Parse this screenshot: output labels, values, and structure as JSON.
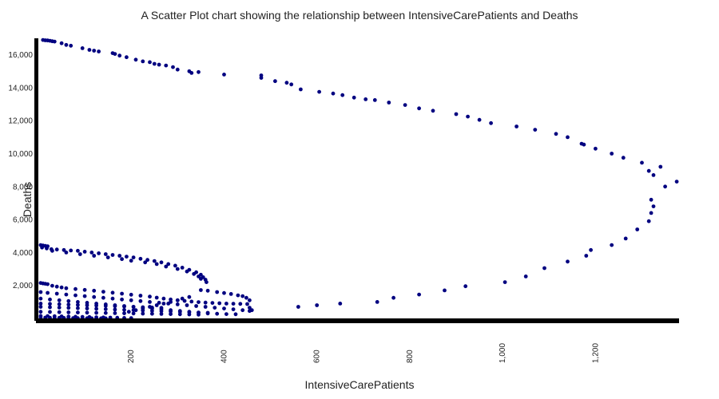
{
  "chart_data": {
    "type": "scatter",
    "title": "A Scatter Plot chart showing the relationship between IntensiveCarePatients and Deaths",
    "xlabel": "IntensiveCarePatients",
    "ylabel": "Deaths",
    "xlim": [
      0,
      1380
    ],
    "ylim": [
      0,
      17000
    ],
    "grid": false,
    "legend": "none",
    "x_ticks": [
      200,
      400,
      600,
      800,
      1000,
      1200
    ],
    "x_tick_labels": [
      "200",
      "400",
      "600",
      "800",
      "1,000",
      "1,200"
    ],
    "y_ticks": [
      2000,
      4000,
      6000,
      8000,
      10000,
      12000,
      14000,
      16000
    ],
    "y_tick_labels": [
      "2,000",
      "4,000",
      "6,000",
      "8,000",
      "10,000",
      "12,000",
      "14,000",
      "16,000"
    ],
    "marker_color": "#000080",
    "points": [
      [
        10,
        16900
      ],
      [
        15,
        16880
      ],
      [
        20,
        16870
      ],
      [
        25,
        16850
      ],
      [
        30,
        16820
      ],
      [
        35,
        16800
      ],
      [
        50,
        16700
      ],
      [
        60,
        16600
      ],
      [
        70,
        16550
      ],
      [
        95,
        16400
      ],
      [
        110,
        16300
      ],
      [
        120,
        16250
      ],
      [
        130,
        16200
      ],
      [
        160,
        16100
      ],
      [
        165,
        16050
      ],
      [
        175,
        15950
      ],
      [
        190,
        15850
      ],
      [
        210,
        15700
      ],
      [
        225,
        15600
      ],
      [
        240,
        15550
      ],
      [
        250,
        15450
      ],
      [
        260,
        15400
      ],
      [
        275,
        15350
      ],
      [
        290,
        15250
      ],
      [
        300,
        15100
      ],
      [
        325,
        15000
      ],
      [
        330,
        14900
      ],
      [
        345,
        14950
      ],
      [
        400,
        14800
      ],
      [
        480,
        14750
      ],
      [
        480,
        14600
      ],
      [
        510,
        14400
      ],
      [
        535,
        14300
      ],
      [
        545,
        14200
      ],
      [
        565,
        13900
      ],
      [
        605,
        13750
      ],
      [
        635,
        13650
      ],
      [
        655,
        13550
      ],
      [
        680,
        13400
      ],
      [
        705,
        13300
      ],
      [
        725,
        13250
      ],
      [
        755,
        13100
      ],
      [
        790,
        12950
      ],
      [
        820,
        12750
      ],
      [
        850,
        12600
      ],
      [
        900,
        12400
      ],
      [
        925,
        12250
      ],
      [
        950,
        12050
      ],
      [
        975,
        11850
      ],
      [
        1030,
        11650
      ],
      [
        1070,
        11450
      ],
      [
        1115,
        11200
      ],
      [
        1140,
        11000
      ],
      [
        1170,
        10600
      ],
      [
        1175,
        10550
      ],
      [
        1200,
        10300
      ],
      [
        1235,
        10000
      ],
      [
        1260,
        9750
      ],
      [
        1300,
        9450
      ],
      [
        1315,
        8950
      ],
      [
        1325,
        8700
      ],
      [
        1340,
        9200
      ],
      [
        1350,
        8000
      ],
      [
        1375,
        8300
      ],
      [
        1320,
        7200
      ],
      [
        1325,
        6800
      ],
      [
        1320,
        6400
      ],
      [
        1315,
        5900
      ],
      [
        1290,
        5400
      ],
      [
        1265,
        4850
      ],
      [
        1235,
        4450
      ],
      [
        1190,
        4150
      ],
      [
        1180,
        3800
      ],
      [
        1140,
        3450
      ],
      [
        1090,
        3050
      ],
      [
        1050,
        2550
      ],
      [
        1005,
        2200
      ],
      [
        920,
        1950
      ],
      [
        875,
        1700
      ],
      [
        820,
        1450
      ],
      [
        765,
        1250
      ],
      [
        730,
        1000
      ],
      [
        650,
        900
      ],
      [
        600,
        800
      ],
      [
        560,
        700
      ],
      [
        5,
        4450
      ],
      [
        10,
        4420
      ],
      [
        15,
        4400
      ],
      [
        20,
        4380
      ],
      [
        8,
        4300
      ],
      [
        18,
        4250
      ],
      [
        28,
        4200
      ],
      [
        40,
        4180
      ],
      [
        55,
        4150
      ],
      [
        70,
        4120
      ],
      [
        85,
        4100
      ],
      [
        100,
        4050
      ],
      [
        115,
        4000
      ],
      [
        130,
        3950
      ],
      [
        145,
        3900
      ],
      [
        160,
        3850
      ],
      [
        175,
        3800
      ],
      [
        190,
        3750
      ],
      [
        205,
        3700
      ],
      [
        220,
        3620
      ],
      [
        235,
        3550
      ],
      [
        250,
        3480
      ],
      [
        265,
        3400
      ],
      [
        280,
        3300
      ],
      [
        295,
        3200
      ],
      [
        310,
        3080
      ],
      [
        325,
        2950
      ],
      [
        340,
        2800
      ],
      [
        350,
        2650
      ],
      [
        355,
        2500
      ],
      [
        360,
        2350
      ],
      [
        362,
        2200
      ],
      [
        30,
        4100
      ],
      [
        60,
        4000
      ],
      [
        90,
        3900
      ],
      [
        120,
        3800
      ],
      [
        150,
        3700
      ],
      [
        180,
        3600
      ],
      [
        200,
        3500
      ],
      [
        230,
        3400
      ],
      [
        255,
        3300
      ],
      [
        275,
        3150
      ],
      [
        300,
        3000
      ],
      [
        320,
        2850
      ],
      [
        335,
        2700
      ],
      [
        345,
        2550
      ],
      [
        350,
        2400
      ],
      [
        5,
        2150
      ],
      [
        10,
        2120
      ],
      [
        15,
        2100
      ],
      [
        20,
        2080
      ],
      [
        30,
        1980
      ],
      [
        40,
        1930
      ],
      [
        50,
        1880
      ],
      [
        60,
        1830
      ],
      [
        80,
        1780
      ],
      [
        100,
        1730
      ],
      [
        120,
        1680
      ],
      [
        140,
        1620
      ],
      [
        160,
        1560
      ],
      [
        180,
        1500
      ],
      [
        200,
        1440
      ],
      [
        220,
        1380
      ],
      [
        240,
        1320
      ],
      [
        255,
        1260
      ],
      [
        270,
        1200
      ],
      [
        285,
        1150
      ],
      [
        300,
        1100
      ],
      [
        315,
        1060
      ],
      [
        330,
        1020
      ],
      [
        345,
        990
      ],
      [
        360,
        960
      ],
      [
        375,
        940
      ],
      [
        390,
        920
      ],
      [
        405,
        900
      ],
      [
        420,
        890
      ],
      [
        435,
        880
      ],
      [
        450,
        870
      ],
      [
        455,
        650
      ],
      [
        460,
        500
      ],
      [
        455,
        1100
      ],
      [
        448,
        1250
      ],
      [
        440,
        1350
      ],
      [
        430,
        1400
      ],
      [
        415,
        1480
      ],
      [
        400,
        1540
      ],
      [
        385,
        1600
      ],
      [
        365,
        1680
      ],
      [
        350,
        1720
      ],
      [
        5,
        1600
      ],
      [
        20,
        1550
      ],
      [
        40,
        1500
      ],
      [
        60,
        1450
      ],
      [
        80,
        1400
      ],
      [
        100,
        1350
      ],
      [
        120,
        1300
      ],
      [
        140,
        1250
      ],
      [
        160,
        1200
      ],
      [
        180,
        1150
      ],
      [
        200,
        1100
      ],
      [
        220,
        1050
      ],
      [
        240,
        1000
      ],
      [
        260,
        950
      ],
      [
        280,
        900
      ],
      [
        300,
        850
      ],
      [
        320,
        800
      ],
      [
        340,
        750
      ],
      [
        360,
        700
      ],
      [
        380,
        650
      ],
      [
        400,
        600
      ],
      [
        420,
        550
      ],
      [
        440,
        500
      ],
      [
        455,
        450
      ],
      [
        5,
        1200
      ],
      [
        25,
        1150
      ],
      [
        45,
        1100
      ],
      [
        65,
        1050
      ],
      [
        85,
        1000
      ],
      [
        105,
        950
      ],
      [
        125,
        900
      ],
      [
        145,
        850
      ],
      [
        165,
        800
      ],
      [
        185,
        750
      ],
      [
        205,
        700
      ],
      [
        225,
        650
      ],
      [
        245,
        600
      ],
      [
        265,
        550
      ],
      [
        285,
        500
      ],
      [
        305,
        450
      ],
      [
        325,
        400
      ],
      [
        345,
        350
      ],
      [
        365,
        300
      ],
      [
        385,
        280
      ],
      [
        405,
        260
      ],
      [
        425,
        250
      ],
      [
        5,
        900
      ],
      [
        25,
        880
      ],
      [
        45,
        860
      ],
      [
        65,
        840
      ],
      [
        85,
        820
      ],
      [
        105,
        800
      ],
      [
        125,
        780
      ],
      [
        145,
        760
      ],
      [
        165,
        740
      ],
      [
        185,
        720
      ],
      [
        205,
        700
      ],
      [
        225,
        680
      ],
      [
        245,
        660
      ],
      [
        265,
        640
      ],
      [
        5,
        700
      ],
      [
        25,
        680
      ],
      [
        45,
        660
      ],
      [
        65,
        640
      ],
      [
        85,
        620
      ],
      [
        105,
        600
      ],
      [
        125,
        580
      ],
      [
        145,
        560
      ],
      [
        165,
        540
      ],
      [
        185,
        520
      ],
      [
        205,
        500
      ],
      [
        225,
        480
      ],
      [
        245,
        460
      ],
      [
        265,
        440
      ],
      [
        285,
        420
      ],
      [
        305,
        400
      ],
      [
        325,
        380
      ],
      [
        345,
        360
      ],
      [
        365,
        340
      ],
      [
        195,
        400
      ],
      [
        210,
        500
      ],
      [
        225,
        600
      ],
      [
        240,
        700
      ],
      [
        255,
        800
      ],
      [
        270,
        900
      ],
      [
        285,
        1000
      ],
      [
        300,
        1100
      ],
      [
        310,
        1200
      ],
      [
        325,
        1300
      ],
      [
        5,
        400
      ],
      [
        25,
        390
      ],
      [
        45,
        380
      ],
      [
        65,
        370
      ],
      [
        85,
        360
      ],
      [
        105,
        350
      ],
      [
        125,
        340
      ],
      [
        145,
        330
      ],
      [
        165,
        320
      ],
      [
        185,
        310
      ],
      [
        205,
        300
      ],
      [
        225,
        290
      ],
      [
        245,
        280
      ],
      [
        265,
        270
      ],
      [
        285,
        260
      ],
      [
        305,
        250
      ],
      [
        325,
        240
      ],
      [
        345,
        230
      ],
      [
        5,
        150
      ],
      [
        20,
        140
      ],
      [
        35,
        130
      ],
      [
        50,
        120
      ],
      [
        65,
        110
      ],
      [
        80,
        100
      ],
      [
        95,
        90
      ],
      [
        110,
        80
      ],
      [
        125,
        70
      ],
      [
        140,
        60
      ],
      [
        155,
        50
      ],
      [
        170,
        40
      ],
      [
        185,
        30
      ],
      [
        200,
        20
      ],
      [
        5,
        60
      ],
      [
        15,
        50
      ],
      [
        25,
        45
      ],
      [
        35,
        40
      ],
      [
        45,
        35
      ],
      [
        55,
        30
      ],
      [
        65,
        25
      ],
      [
        75,
        20
      ],
      [
        85,
        15
      ],
      [
        95,
        10
      ],
      [
        105,
        8
      ],
      [
        115,
        6
      ],
      [
        125,
        5
      ],
      [
        135,
        4
      ],
      [
        145,
        3
      ],
      [
        155,
        2
      ]
    ]
  }
}
